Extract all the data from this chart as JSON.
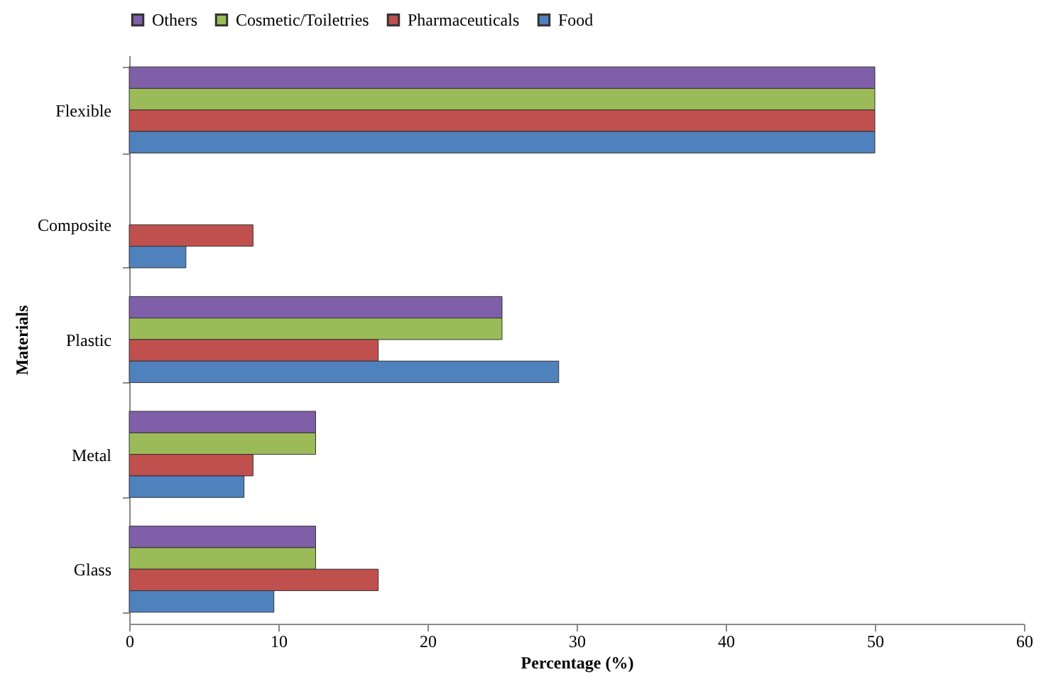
{
  "chart_data": {
    "type": "bar",
    "orientation": "horizontal",
    "xlabel": "Percentage (%)",
    "ylabel": "Materials",
    "categories": [
      "Flexible",
      "Composite",
      "Plastic",
      "Metal",
      "Glass"
    ],
    "series": [
      {
        "name": "Others",
        "color": "#7f5fa8",
        "values": [
          50,
          null,
          25,
          12.5,
          12.5
        ]
      },
      {
        "name": "Cosmetic/Toiletries",
        "color": "#9bbb59",
        "values": [
          50,
          null,
          25,
          12.5,
          12.5
        ]
      },
      {
        "name": "Pharmaceuticals",
        "color": "#c0504d",
        "values": [
          50,
          8.3,
          16.7,
          8.3,
          16.7
        ]
      },
      {
        "name": "Food",
        "color": "#4f81bd",
        "values": [
          50,
          3.8,
          28.8,
          7.7,
          9.7
        ]
      }
    ],
    "xlim": [
      0,
      60
    ],
    "xticks": [
      0,
      10,
      20,
      30,
      40,
      50,
      60
    ],
    "legend": "top",
    "grid": false
  }
}
